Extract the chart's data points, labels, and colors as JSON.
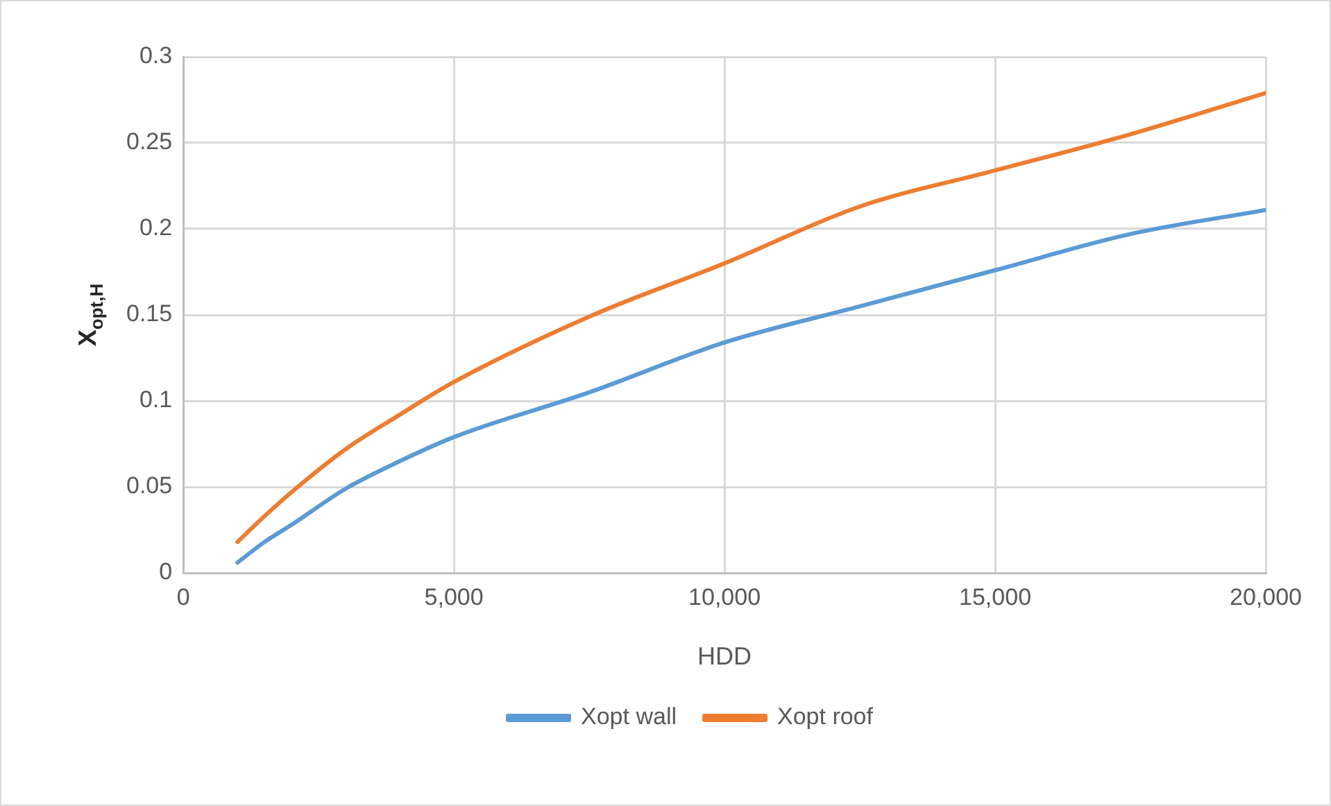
{
  "chart_data": {
    "type": "line",
    "xlabel": "HDD",
    "ylabel": "X$_{opt,H}$",
    "x": [
      1000,
      1500,
      2000,
      3000,
      4000,
      5000,
      7500,
      10000,
      12500,
      15000,
      17500,
      20000
    ],
    "series": [
      {
        "name": "Xopt wall",
        "color": "#5b9bd5",
        "values": [
          0.006,
          0.018,
          0.028,
          0.049,
          0.065,
          0.079,
          0.105,
          0.134,
          0.155,
          0.176,
          0.197,
          0.211
        ]
      },
      {
        "name": "Xopt roof",
        "color": "#ed7d31",
        "values": [
          0.018,
          0.033,
          0.047,
          0.072,
          0.092,
          0.111,
          0.149,
          0.18,
          0.213,
          0.234,
          0.255,
          0.279
        ]
      }
    ],
    "xlim": [
      0,
      20000
    ],
    "xticks": [
      0,
      {
        "value": 5000,
        "label": "5,000"
      },
      {
        "value": 10000,
        "label": "10,000"
      },
      {
        "value": 15000,
        "label": "15,000"
      },
      {
        "value": 20000,
        "label": "20,000"
      }
    ],
    "ylim": [
      0,
      0.3
    ],
    "yticks": [
      0,
      0.05,
      0.1,
      0.15,
      0.2,
      0.25,
      0.3
    ],
    "grid": true,
    "legend": "bottom",
    "marker": "none",
    "line_style": "solid"
  }
}
